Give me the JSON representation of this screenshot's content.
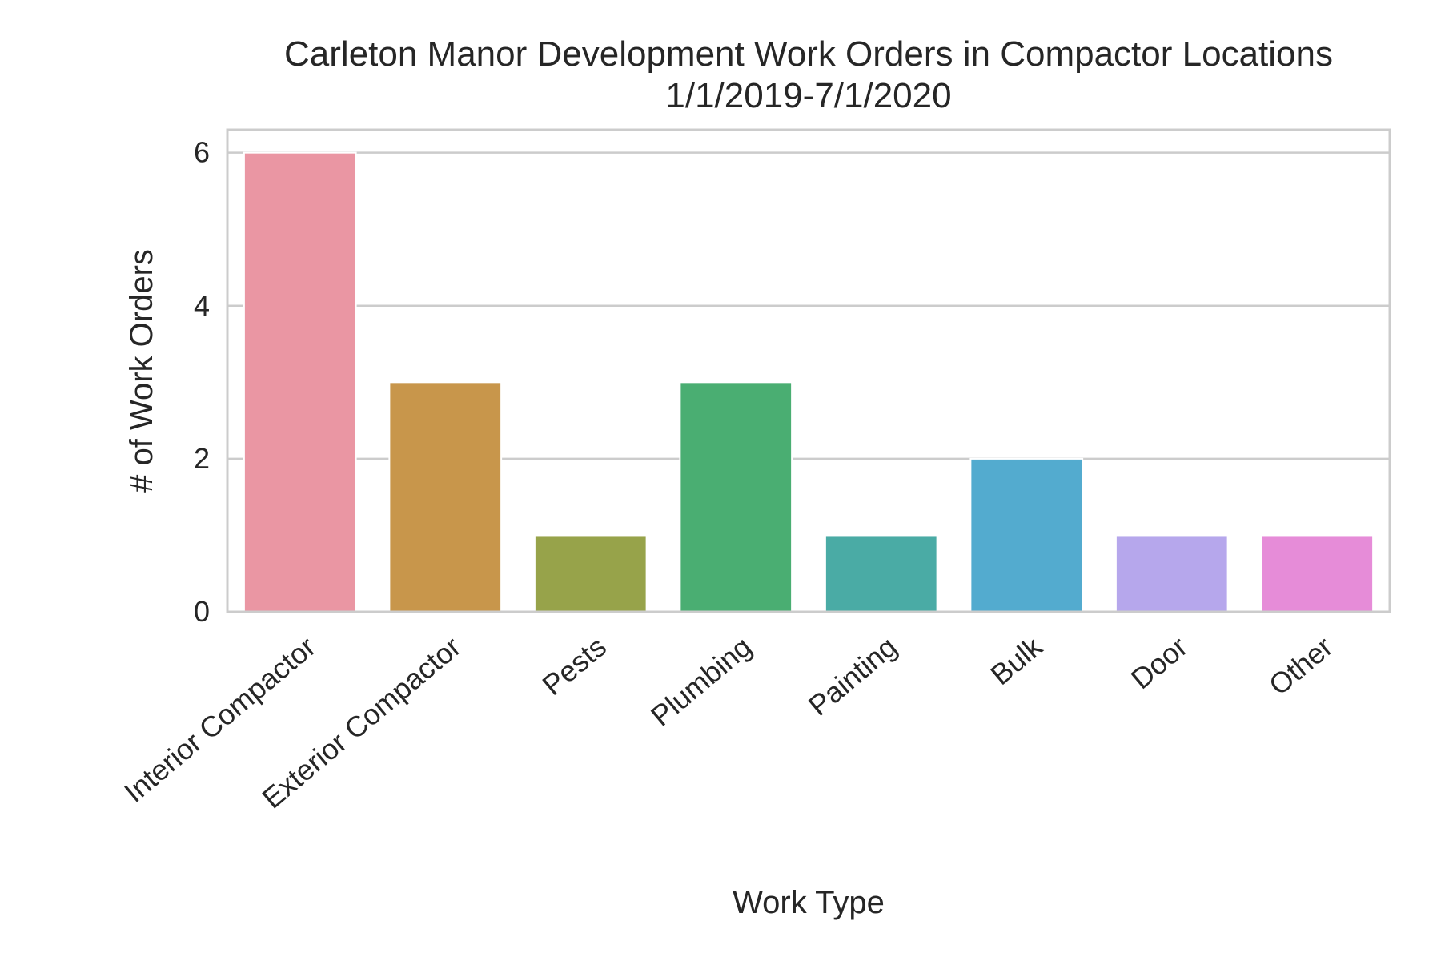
{
  "chart_data": {
    "type": "bar",
    "title": "Carleton Manor Development Work Orders in Compactor Locations",
    "subtitle": "1/1/2019-7/1/2020",
    "xlabel": "Work Type",
    "ylabel": "# of Work Orders",
    "categories": [
      "Interior Compactor",
      "Exterior Compactor",
      "Pests",
      "Plumbing",
      "Painting",
      "Bulk",
      "Door",
      "Other"
    ],
    "values": [
      6,
      3,
      1,
      3,
      1,
      2,
      1,
      1
    ],
    "colors": [
      "#ea96a3",
      "#c8964b",
      "#97a34a",
      "#4aae72",
      "#4aaba5",
      "#53abcf",
      "#b6a7ec",
      "#e68cd8"
    ],
    "ylim": [
      0,
      6.3
    ],
    "yticks": [
      "0",
      "2",
      "4",
      "6"
    ],
    "grid": true,
    "legend": "none"
  }
}
